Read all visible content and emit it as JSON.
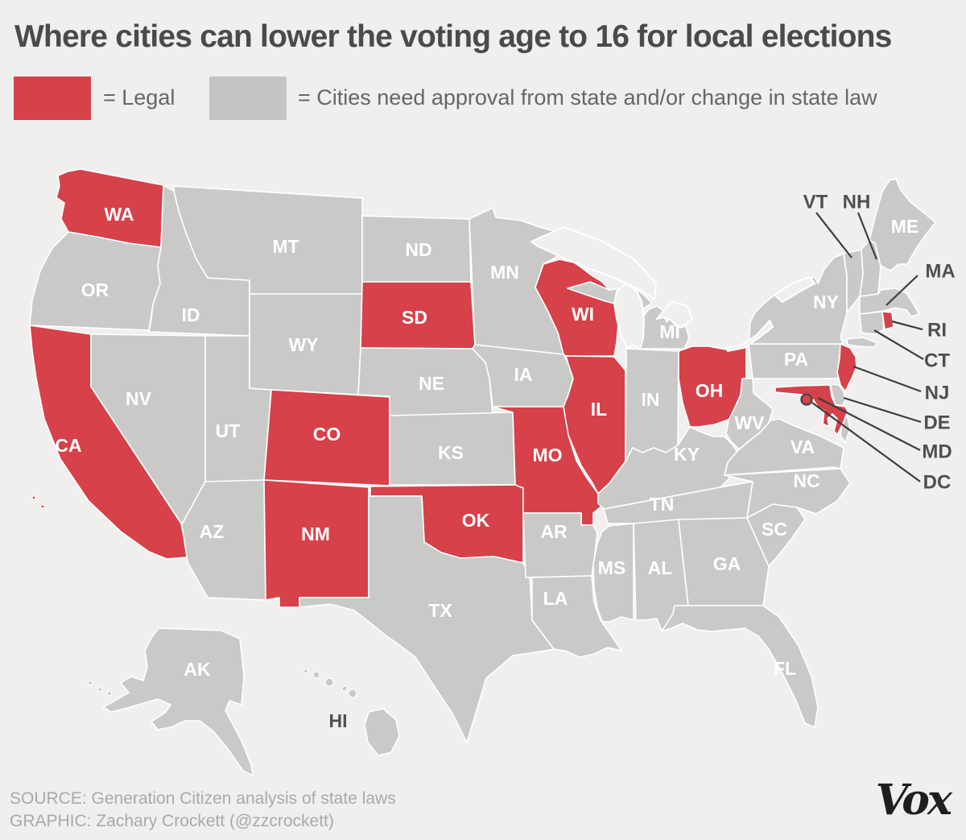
{
  "header": {
    "title": "Where cities can lower the voting age to 16 for local elections"
  },
  "legend": {
    "items": [
      {
        "id": "legal",
        "swatch_color": "#d6414a",
        "label": "= Legal"
      },
      {
        "id": "approval",
        "swatch_color": "#c4c4c4",
        "label": "= Cities need approval from state and/or change in state law"
      }
    ]
  },
  "map": {
    "colors": {
      "legal": "#d6414a",
      "approval": "#c9c9c7",
      "background": "#f0efed",
      "state_border": "#ffffff",
      "on_state_label": "#ffffff",
      "dark_label": "#4f4f4f",
      "leader_line": "#3d3d3d",
      "dc_ring": "#4a4a4a"
    },
    "states": [
      {
        "id": "WA",
        "label": "WA",
        "status": "legal"
      },
      {
        "id": "OR",
        "label": "OR",
        "status": "approval"
      },
      {
        "id": "CA",
        "label": "CA",
        "status": "legal"
      },
      {
        "id": "ID",
        "label": "ID",
        "status": "approval"
      },
      {
        "id": "NV",
        "label": "NV",
        "status": "approval"
      },
      {
        "id": "UT",
        "label": "UT",
        "status": "approval"
      },
      {
        "id": "AZ",
        "label": "AZ",
        "status": "approval"
      },
      {
        "id": "MT",
        "label": "MT",
        "status": "approval"
      },
      {
        "id": "WY",
        "label": "WY",
        "status": "approval"
      },
      {
        "id": "CO",
        "label": "CO",
        "status": "legal"
      },
      {
        "id": "NM",
        "label": "NM",
        "status": "legal"
      },
      {
        "id": "ND",
        "label": "ND",
        "status": "approval"
      },
      {
        "id": "SD",
        "label": "SD",
        "status": "legal"
      },
      {
        "id": "NE",
        "label": "NE",
        "status": "approval"
      },
      {
        "id": "KS",
        "label": "KS",
        "status": "approval"
      },
      {
        "id": "OK",
        "label": "OK",
        "status": "legal"
      },
      {
        "id": "TX",
        "label": "TX",
        "status": "approval"
      },
      {
        "id": "MN",
        "label": "MN",
        "status": "approval"
      },
      {
        "id": "IA",
        "label": "IA",
        "status": "approval"
      },
      {
        "id": "MO",
        "label": "MO",
        "status": "legal"
      },
      {
        "id": "AR",
        "label": "AR",
        "status": "approval"
      },
      {
        "id": "LA",
        "label": "LA",
        "status": "approval"
      },
      {
        "id": "WI",
        "label": "WI",
        "status": "legal"
      },
      {
        "id": "IL",
        "label": "IL",
        "status": "legal"
      },
      {
        "id": "MI",
        "label": "MI",
        "status": "approval"
      },
      {
        "id": "IN",
        "label": "IN",
        "status": "approval"
      },
      {
        "id": "OH",
        "label": "OH",
        "status": "legal"
      },
      {
        "id": "KY",
        "label": "KY",
        "status": "approval"
      },
      {
        "id": "TN",
        "label": "TN",
        "status": "approval"
      },
      {
        "id": "MS",
        "label": "MS",
        "status": "approval"
      },
      {
        "id": "AL",
        "label": "AL",
        "status": "approval"
      },
      {
        "id": "GA",
        "label": "GA",
        "status": "approval"
      },
      {
        "id": "FL",
        "label": "FL",
        "status": "approval"
      },
      {
        "id": "SC",
        "label": "SC",
        "status": "approval"
      },
      {
        "id": "NC",
        "label": "NC",
        "status": "approval"
      },
      {
        "id": "VA",
        "label": "VA",
        "status": "approval"
      },
      {
        "id": "WV",
        "label": "WV",
        "status": "approval"
      },
      {
        "id": "PA",
        "label": "PA",
        "status": "approval"
      },
      {
        "id": "NY",
        "label": "NY",
        "status": "approval"
      },
      {
        "id": "VT",
        "label": "VT",
        "status": "approval"
      },
      {
        "id": "NH",
        "label": "NH",
        "status": "approval"
      },
      {
        "id": "ME",
        "label": "ME",
        "status": "approval"
      },
      {
        "id": "MA",
        "label": "MA",
        "status": "approval"
      },
      {
        "id": "CT",
        "label": "CT",
        "status": "approval"
      },
      {
        "id": "RI",
        "label": "RI",
        "status": "legal"
      },
      {
        "id": "NJ",
        "label": "NJ",
        "status": "legal"
      },
      {
        "id": "DE",
        "label": "DE",
        "status": "approval"
      },
      {
        "id": "MD",
        "label": "MD",
        "status": "legal"
      },
      {
        "id": "DC",
        "label": "DC",
        "status": "legal"
      },
      {
        "id": "AK",
        "label": "AK",
        "status": "approval"
      },
      {
        "id": "HI",
        "label": "HI",
        "status": "approval"
      }
    ],
    "callouts": [
      {
        "id": "VT",
        "label": "VT"
      },
      {
        "id": "NH",
        "label": "NH"
      },
      {
        "id": "MA",
        "label": "MA"
      },
      {
        "id": "RI",
        "label": "RI"
      },
      {
        "id": "CT",
        "label": "CT"
      },
      {
        "id": "NJ",
        "label": "NJ"
      },
      {
        "id": "DE",
        "label": "DE"
      },
      {
        "id": "MD",
        "label": "MD"
      },
      {
        "id": "DC",
        "label": "DC"
      }
    ]
  },
  "footer": {
    "source_line1": "SOURCE: Generation Citizen analysis of state laws",
    "source_line2": "GRAPHIC: Zachary Crockett (@zzcrockett)",
    "brand": "Vox"
  }
}
